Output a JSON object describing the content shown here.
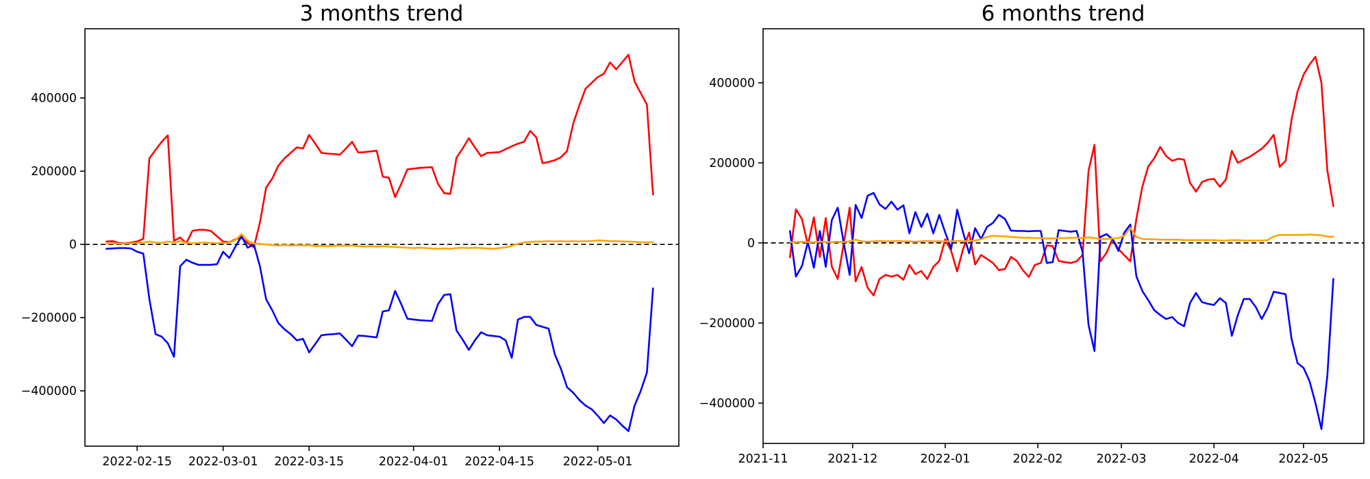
{
  "figure": {
    "background": "#ffffff",
    "text_color": "#000000"
  },
  "chart_data": [
    {
      "type": "line",
      "title": "3 months trend",
      "legend": "none",
      "grid": false,
      "x_unit": "date",
      "x_start": "2022-02-10",
      "x_step_days": 1,
      "x_domain_days": [
        -3.5,
        93.2
      ],
      "y_domain": [
        -551000,
        589000
      ],
      "y_ticks": [
        {
          "value": 400000,
          "label": "400000"
        },
        {
          "value": 200000,
          "label": "200000"
        },
        {
          "value": 0,
          "label": "0"
        },
        {
          "value": -200000,
          "label": "−200000"
        },
        {
          "value": -400000,
          "label": "−400000"
        }
      ],
      "x_ticks": [
        {
          "day": 5,
          "label": "2022-02-15"
        },
        {
          "day": 19,
          "label": "2022-03-01"
        },
        {
          "day": 33,
          "label": "2022-03-15"
        },
        {
          "day": 50,
          "label": "2022-04-01"
        },
        {
          "day": 64,
          "label": "2022-04-15"
        },
        {
          "day": 80,
          "label": "2022-05-01"
        }
      ],
      "zero_line": {
        "style": "dashed",
        "color": "#000000",
        "value": 0
      },
      "series": [
        {
          "name": "red-line",
          "color": "#ff0000",
          "values": [
            8000,
            9000,
            4000,
            3000,
            5000,
            8000,
            15000,
            235000,
            258000,
            280000,
            298000,
            10000,
            19000,
            3000,
            37000,
            40000,
            40000,
            37000,
            22000,
            8000,
            6000,
            14000,
            18000,
            4000,
            -8000,
            60000,
            155000,
            180000,
            215000,
            235000,
            250000,
            265000,
            262000,
            299000,
            275000,
            250000,
            248000,
            247000,
            245000,
            262000,
            280000,
            251000,
            252000,
            254000,
            256000,
            185000,
            182000,
            129000,
            165000,
            205000,
            207000,
            209000,
            210000,
            211000,
            165000,
            140000,
            138000,
            237000,
            262000,
            290000,
            265000,
            241000,
            250000,
            251000,
            252000,
            260000,
            268000,
            275000,
            280000,
            310000,
            292000,
            222000,
            225000,
            230000,
            238000,
            255000,
            330000,
            380000,
            425000,
            441000,
            457000,
            466000,
            497000,
            478000,
            498000,
            518000,
            445000,
            413000,
            382000,
            136000
          ]
        },
        {
          "name": "blue-line",
          "color": "#0000ff",
          "values": [
            -12000,
            -11000,
            -10000,
            -10000,
            -11000,
            -20000,
            -25000,
            -150000,
            -245000,
            -252000,
            -270000,
            -307000,
            -60000,
            -42000,
            -50000,
            -56000,
            -56000,
            -56000,
            -54000,
            -20000,
            -37000,
            -6000,
            22000,
            -9000,
            0,
            -60000,
            -150000,
            -180000,
            -215000,
            -232000,
            -245000,
            -262000,
            -258000,
            -295000,
            -272000,
            -248000,
            -246000,
            -245000,
            -243000,
            -260000,
            -278000,
            -249000,
            -250000,
            -252000,
            -254000,
            -183000,
            -180000,
            -127000,
            -163000,
            -203000,
            -205000,
            -207000,
            -208000,
            -209000,
            -163000,
            -138000,
            -136000,
            -235000,
            -260000,
            -288000,
            -262000,
            -240000,
            -248000,
            -250000,
            -252000,
            -262000,
            -310000,
            -205000,
            -198000,
            -198000,
            -220000,
            -225000,
            -230000,
            -300000,
            -340000,
            -390000,
            -405000,
            -425000,
            -440000,
            -450000,
            -468000,
            -488000,
            -467000,
            -478000,
            -495000,
            -510000,
            -440000,
            -400000,
            -350000,
            -120000
          ]
        },
        {
          "name": "orange-line",
          "color": "#ffa500",
          "values": [
            2000,
            3000,
            2000,
            2000,
            3000,
            4000,
            5000,
            8000,
            5000,
            4000,
            8000,
            5000,
            9000,
            4000,
            3000,
            4000,
            5000,
            4000,
            3000,
            4000,
            5000,
            12000,
            28000,
            10000,
            2000,
            1000,
            0,
            -2000,
            -3000,
            -2000,
            -3000,
            -2000,
            -3000,
            -2000,
            -5000,
            -4000,
            -5000,
            -4000,
            -3000,
            -4000,
            -3000,
            -5000,
            -6000,
            -5000,
            -6000,
            -5000,
            -6000,
            -7000,
            -8000,
            -9000,
            -10000,
            -9000,
            -10000,
            -11000,
            -12000,
            -11000,
            -12000,
            -10000,
            -9000,
            -10000,
            -9000,
            -10000,
            -11000,
            -12000,
            -10000,
            -8000,
            -4000,
            2000,
            5000,
            7000,
            8000,
            8000,
            9000,
            8000,
            9000,
            8000,
            9000,
            8000,
            9000,
            9000,
            11000,
            10000,
            9000,
            9000,
            8000,
            8000,
            7000,
            6000,
            6000,
            6000
          ]
        }
      ]
    },
    {
      "type": "line",
      "title": "6 months trend",
      "legend": "none",
      "grid": false,
      "x_unit": "date",
      "x_start": "2021-11-10",
      "x_step_days": 2,
      "x_domain_days": [
        -9,
        192.2
      ],
      "y_domain": [
        -500700,
        534900
      ],
      "y_ticks": [
        {
          "value": 400000,
          "label": "400000"
        },
        {
          "value": 200000,
          "label": "200000"
        },
        {
          "value": 0,
          "label": "0"
        },
        {
          "value": -200000,
          "label": "−200000"
        },
        {
          "value": -400000,
          "label": "−400000"
        }
      ],
      "x_ticks": [
        {
          "day": -9,
          "label": "2021-11"
        },
        {
          "day": 21,
          "label": "2021-12"
        },
        {
          "day": 52,
          "label": "2022-01"
        },
        {
          "day": 83,
          "label": "2022-02"
        },
        {
          "day": 111,
          "label": "2022-03"
        },
        {
          "day": 142,
          "label": "2022-04"
        },
        {
          "day": 172,
          "label": "2022-05"
        }
      ],
      "zero_line": {
        "style": "dashed",
        "color": "#000000",
        "value": 0
      },
      "series": [
        {
          "name": "red-line",
          "color": "#ff0000",
          "values": [
            -36000,
            84000,
            60000,
            -5000,
            64000,
            -35000,
            62000,
            -59000,
            -90000,
            -2000,
            88000,
            -96000,
            -60000,
            -112000,
            -131000,
            -90000,
            -80000,
            -84000,
            -80000,
            -92000,
            -55000,
            -78000,
            -70000,
            -90000,
            -60000,
            -45000,
            9000,
            -20000,
            -71000,
            -15000,
            26000,
            -54000,
            -30000,
            -40000,
            -50000,
            -68000,
            -65000,
            -35000,
            -45000,
            -68000,
            -85000,
            -55000,
            -50000,
            -6000,
            -8000,
            -45000,
            -48000,
            -50000,
            -46000,
            -30000,
            180000,
            245000,
            -46000,
            -25000,
            10000,
            -15000,
            -31000,
            -46000,
            60000,
            140000,
            191000,
            211000,
            240000,
            217000,
            205000,
            210000,
            208000,
            150000,
            128000,
            152000,
            158000,
            160000,
            140000,
            158000,
            230000,
            200000,
            208000,
            215000,
            225000,
            235000,
            250000,
            270000,
            190000,
            205000,
            308000,
            378000,
            420000,
            445000,
            465000,
            400000,
            180000,
            92000
          ]
        },
        {
          "name": "blue-line",
          "color": "#0000ff",
          "values": [
            30000,
            -84000,
            -58000,
            2000,
            -62000,
            30000,
            -60000,
            57000,
            88000,
            0,
            -80000,
            95000,
            62000,
            118000,
            125000,
            96000,
            85000,
            103000,
            83000,
            94000,
            24000,
            77000,
            40000,
            73000,
            24000,
            70000,
            26000,
            -15000,
            83000,
            26000,
            -26000,
            37000,
            10000,
            40000,
            50000,
            70000,
            60000,
            31000,
            30000,
            30000,
            29000,
            30000,
            30000,
            -50000,
            -48000,
            32000,
            30000,
            28000,
            30000,
            -23000,
            -205000,
            -270000,
            15000,
            22000,
            10000,
            -20000,
            26000,
            46000,
            -83000,
            -120000,
            -143000,
            -168000,
            -180000,
            -190000,
            -185000,
            -200000,
            -208000,
            -150000,
            -125000,
            -148000,
            -152000,
            -155000,
            -138000,
            -150000,
            -232000,
            -180000,
            -140000,
            -140000,
            -160000,
            -190000,
            -162000,
            -122000,
            -125000,
            -128000,
            -240000,
            -300000,
            -312000,
            -345000,
            -400000,
            -465000,
            -330000,
            -90000
          ]
        },
        {
          "name": "orange-line",
          "color": "#ffa500",
          "values": [
            2000,
            2000,
            3000,
            2000,
            2000,
            3000,
            2000,
            2000,
            3000,
            2000,
            4000,
            8000,
            4000,
            3000,
            4000,
            5000,
            4000,
            4000,
            5000,
            4000,
            4000,
            3000,
            4000,
            5000,
            4000,
            4000,
            4000,
            4000,
            5000,
            4000,
            5000,
            6000,
            9000,
            15000,
            18000,
            17000,
            16000,
            15000,
            14000,
            13000,
            13000,
            12000,
            12000,
            11000,
            11000,
            12000,
            12000,
            13000,
            13000,
            12000,
            14000,
            12000,
            10000,
            10000,
            11000,
            12000,
            18000,
            38000,
            15000,
            10000,
            9000,
            9000,
            8000,
            8000,
            8000,
            8000,
            7000,
            7000,
            7000,
            7000,
            7000,
            7000,
            6000,
            6000,
            7000,
            7000,
            6000,
            6000,
            6000,
            6000,
            7000,
            16000,
            20000,
            20000,
            20000,
            20000,
            20000,
            21000,
            20000,
            19000,
            16000,
            15000
          ]
        }
      ]
    }
  ]
}
